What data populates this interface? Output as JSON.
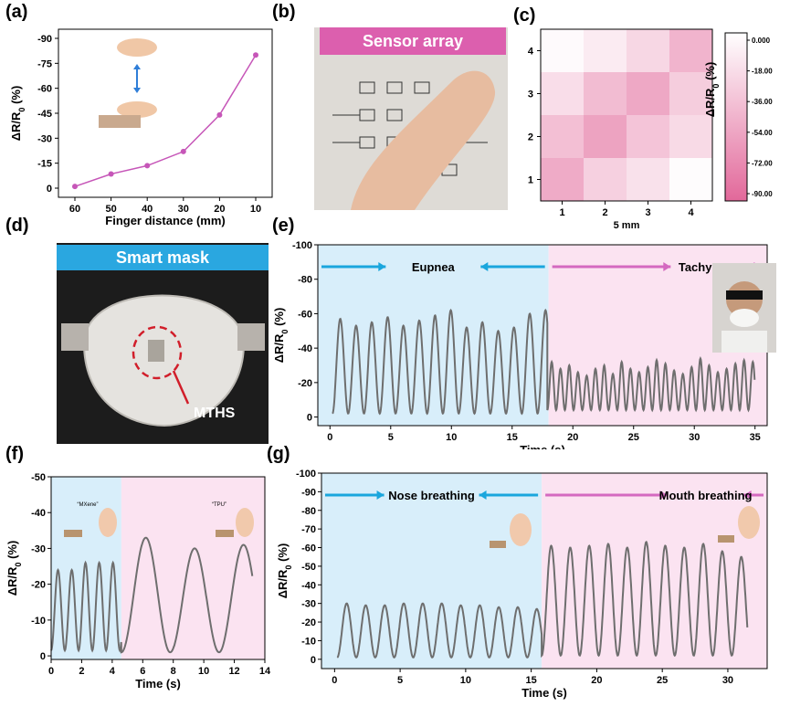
{
  "panels": {
    "a": {
      "label": "(a)"
    },
    "b": {
      "label": "(b)",
      "banner": "Sensor array"
    },
    "c": {
      "label": "(c)"
    },
    "d": {
      "label": "(d)",
      "banner": "Smart mask",
      "callout": "MTHS"
    },
    "e": {
      "label": "(e)",
      "region1": "Eupnea",
      "region2": "Tachypnea"
    },
    "f": {
      "label": "(f)",
      "inset1": "“MXene”",
      "inset2": "“TPU”"
    },
    "g": {
      "label": "(g)",
      "region1": "Nose breathing",
      "region2": "Mouth breathing"
    }
  },
  "colors": {
    "line": "#6e6e6e",
    "magenta": "#c656b8",
    "blue_region": "#d8eefa",
    "pink_region": "#fbe3f1",
    "blue_arrow": "#1aa6dd",
    "pink_arrow": "#d469c0",
    "banner_pink": "#dc5fae",
    "banner_blue": "#2aa7e0"
  },
  "chart_data": [
    {
      "id": "a",
      "type": "line",
      "x": [
        60,
        50,
        40,
        30,
        20,
        10
      ],
      "y": [
        -1,
        -8.5,
        -13.5,
        -22,
        -44,
        -80
      ],
      "xlabel": "Finger distance (mm)",
      "ylabel": "ΔR/R0 (%)",
      "xticks": [
        "60",
        "50",
        "40",
        "30",
        "20",
        "10"
      ],
      "yticks": [
        "0",
        "-15",
        "-30",
        "-45",
        "-60",
        "-75",
        "-90"
      ],
      "ylim": [
        0,
        -90
      ]
    },
    {
      "id": "c",
      "type": "heatmap",
      "rows": [
        "4",
        "3",
        "2",
        "1"
      ],
      "cols": [
        "1",
        "2",
        "3",
        "4"
      ],
      "values": [
        [
          -3,
          -12,
          -24,
          -45
        ],
        [
          -20,
          -40,
          -52,
          -30
        ],
        [
          -38,
          -55,
          -35,
          -22
        ],
        [
          -50,
          -28,
          -18,
          -2
        ]
      ],
      "xlabel": "5 mm",
      "colorbar_label": "ΔR/R0 (%)",
      "colorbar_ticks": [
        "0.000",
        "-18.00",
        "-36.00",
        "-54.00",
        "-72.00",
        "-90.00"
      ],
      "range": [
        0,
        -90
      ]
    },
    {
      "id": "e",
      "type": "line",
      "xlabel": "Time (s)",
      "ylabel": "ΔR/R0 (%)",
      "xticks": [
        "0",
        "5",
        "10",
        "15",
        "20",
        "25",
        "30",
        "35"
      ],
      "yticks": [
        "0",
        "-20",
        "-40",
        "-60",
        "-80",
        "-100"
      ],
      "xlim": [
        -1,
        36
      ],
      "ylim": [
        5,
        -100
      ],
      "split": 18,
      "segments": [
        {
          "start": 0.2,
          "end": 17.9,
          "period": 1.3,
          "base": -2,
          "peaks": [
            -57,
            -53,
            -55,
            -58,
            -53,
            -56,
            -59,
            -62,
            -52,
            -55,
            -50,
            -52,
            -60,
            -62,
            -64
          ]
        },
        {
          "start": 17.9,
          "end": 35,
          "period": 0.72,
          "base": -4,
          "peaks": [
            -32,
            -28,
            -30,
            -26,
            -24,
            -28,
            -30,
            -25,
            -32,
            -28,
            -26,
            -29,
            -33,
            -31,
            -27,
            -25,
            -29,
            -34,
            -30,
            -26,
            -28,
            -31,
            -33,
            -32
          ]
        }
      ]
    },
    {
      "id": "f",
      "type": "line",
      "xlabel": "Time (s)",
      "ylabel": "ΔR/R0 (%)",
      "xticks": [
        "0",
        "2",
        "4",
        "6",
        "8",
        "10",
        "12",
        "14"
      ],
      "yticks": [
        "0",
        "-10",
        "-20",
        "-30",
        "-40",
        "-50"
      ],
      "xlim": [
        0,
        14
      ],
      "ylim": [
        1,
        -50
      ],
      "split": 4.6,
      "segments": [
        {
          "start": 0,
          "end": 4.6,
          "period": 0.9,
          "base": -1.5,
          "peaks": [
            -24,
            -24,
            -26,
            -26
          ]
        },
        {
          "start": 4.6,
          "end": 13.2,
          "period": 3.2,
          "base": -1,
          "peaks": [
            -33,
            -30,
            -31
          ]
        }
      ]
    },
    {
      "id": "g",
      "type": "line",
      "xlabel": "Time (s)",
      "ylabel": "ΔR/R0 (%)",
      "xticks": [
        "0",
        "5",
        "10",
        "15",
        "20",
        "25",
        "30"
      ],
      "yticks": [
        "0",
        "-10",
        "-20",
        "-30",
        "-40",
        "-50",
        "-60",
        "-70",
        "-80",
        "-90",
        "-100"
      ],
      "xlim": [
        -1,
        33
      ],
      "ylim": [
        5,
        -100
      ],
      "split": 15.8,
      "segments": [
        {
          "start": 0.2,
          "end": 15.8,
          "period": 1.45,
          "base": -1,
          "peaks": [
            -30,
            -29,
            -29,
            -30,
            -30,
            -30,
            -29,
            -29,
            -28,
            -28,
            -27
          ]
        },
        {
          "start": 15.8,
          "end": 31.5,
          "period": 1.45,
          "base": -2,
          "peaks": [
            -61,
            -60,
            -61,
            -62,
            -60,
            -63,
            -61,
            -60,
            -62,
            -58,
            -55
          ]
        }
      ]
    }
  ]
}
